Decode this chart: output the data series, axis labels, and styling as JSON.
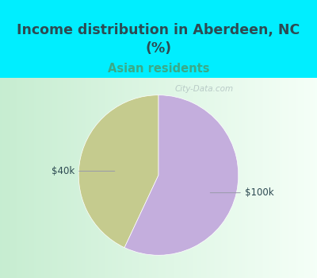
{
  "title": "Income distribution in Aberdeen, NC\n(%)",
  "subtitle": "Asian residents",
  "slices": [
    0.43,
    0.57
  ],
  "labels": [
    "$40k",
    "$100k"
  ],
  "colors": [
    "#c5cb8e",
    "#c4aedd"
  ],
  "bg_cyan": "#00eeff",
  "title_color": "#2d4a52",
  "subtitle_color": "#3aaa88",
  "label_color": "#2d4a52",
  "startangle": 90,
  "watermark": "City-Data.com",
  "chart_bg_left": "#c8ecd4",
  "chart_bg_right": "#f0f8f0"
}
